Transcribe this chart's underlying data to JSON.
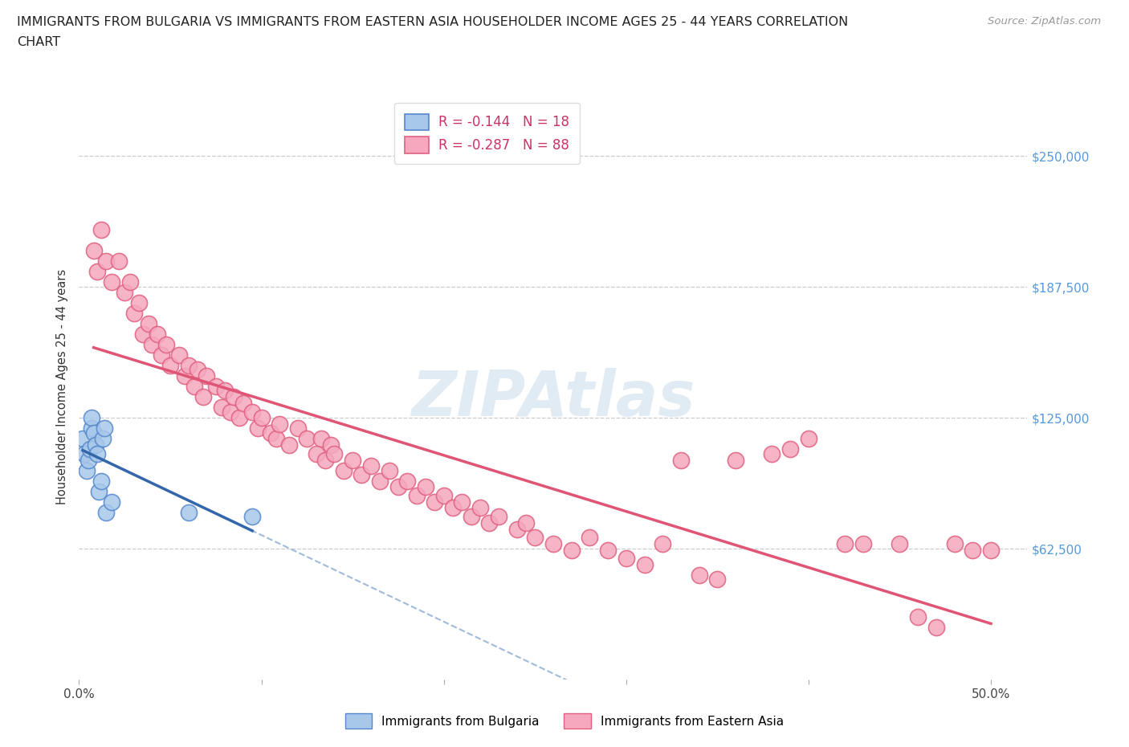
{
  "title_line1": "IMMIGRANTS FROM BULGARIA VS IMMIGRANTS FROM EASTERN ASIA HOUSEHOLDER INCOME AGES 25 - 44 YEARS CORRELATION",
  "title_line2": "CHART",
  "source_text": "Source: ZipAtlas.com",
  "ylabel": "Householder Income Ages 25 - 44 years",
  "xlim": [
    0.0,
    0.52
  ],
  "ylim": [
    0,
    280000
  ],
  "ytick_vals": [
    62500,
    125000,
    187500,
    250000
  ],
  "ytick_labels": [
    "$62,500",
    "$125,000",
    "$187,500",
    "$250,000"
  ],
  "xtick_vals": [
    0.0,
    0.1,
    0.2,
    0.3,
    0.4,
    0.5
  ],
  "xtick_labels": [
    "0.0%",
    "",
    "",
    "",
    "",
    "50.0%"
  ],
  "bg_color": "#ffffff",
  "grid_color": "#cccccc",
  "bulgaria_fill": "#a8c8ea",
  "bulgaria_edge": "#5588cc",
  "eastern_asia_fill": "#f5a8be",
  "eastern_asia_edge": "#e06080",
  "trend_bulgaria_solid": "#3366aa",
  "trend_bulgaria_dash": "#88aad0",
  "trend_eastern_asia": "#e05575",
  "legend_R_bg": "R = -0.144",
  "legend_N_bg": "N = 18",
  "legend_R_ea": "R = -0.287",
  "legend_N_ea": "N = 88",
  "watermark": "ZIPAtlas",
  "bulgaria_x": [
    0.002,
    0.003,
    0.004,
    0.005,
    0.006,
    0.007,
    0.007,
    0.008,
    0.009,
    0.01,
    0.011,
    0.012,
    0.013,
    0.014,
    0.015,
    0.018,
    0.06,
    0.095
  ],
  "bulgaria_y": [
    115000,
    108000,
    100000,
    105000,
    110000,
    120000,
    125000,
    118000,
    112000,
    108000,
    90000,
    95000,
    115000,
    120000,
    80000,
    85000,
    80000,
    78000
  ],
  "eastern_asia_x": [
    0.008,
    0.01,
    0.012,
    0.015,
    0.018,
    0.022,
    0.025,
    0.028,
    0.03,
    0.033,
    0.035,
    0.038,
    0.04,
    0.043,
    0.045,
    0.048,
    0.05,
    0.055,
    0.058,
    0.06,
    0.063,
    0.065,
    0.068,
    0.07,
    0.075,
    0.078,
    0.08,
    0.083,
    0.085,
    0.088,
    0.09,
    0.095,
    0.098,
    0.1,
    0.105,
    0.108,
    0.11,
    0.115,
    0.12,
    0.125,
    0.13,
    0.133,
    0.135,
    0.138,
    0.14,
    0.145,
    0.15,
    0.155,
    0.16,
    0.165,
    0.17,
    0.175,
    0.18,
    0.185,
    0.19,
    0.195,
    0.2,
    0.205,
    0.21,
    0.215,
    0.22,
    0.225,
    0.23,
    0.24,
    0.245,
    0.25,
    0.26,
    0.27,
    0.28,
    0.29,
    0.3,
    0.31,
    0.32,
    0.33,
    0.34,
    0.35,
    0.36,
    0.38,
    0.39,
    0.4,
    0.42,
    0.43,
    0.45,
    0.46,
    0.47,
    0.48,
    0.49,
    0.5
  ],
  "eastern_asia_y": [
    205000,
    195000,
    215000,
    200000,
    190000,
    200000,
    185000,
    190000,
    175000,
    180000,
    165000,
    170000,
    160000,
    165000,
    155000,
    160000,
    150000,
    155000,
    145000,
    150000,
    140000,
    148000,
    135000,
    145000,
    140000,
    130000,
    138000,
    128000,
    135000,
    125000,
    132000,
    128000,
    120000,
    125000,
    118000,
    115000,
    122000,
    112000,
    120000,
    115000,
    108000,
    115000,
    105000,
    112000,
    108000,
    100000,
    105000,
    98000,
    102000,
    95000,
    100000,
    92000,
    95000,
    88000,
    92000,
    85000,
    88000,
    82000,
    85000,
    78000,
    82000,
    75000,
    78000,
    72000,
    75000,
    68000,
    65000,
    62000,
    68000,
    62000,
    58000,
    55000,
    65000,
    105000,
    50000,
    48000,
    105000,
    108000,
    110000,
    115000,
    65000,
    65000,
    65000,
    30000,
    25000,
    65000,
    62000,
    62000
  ]
}
